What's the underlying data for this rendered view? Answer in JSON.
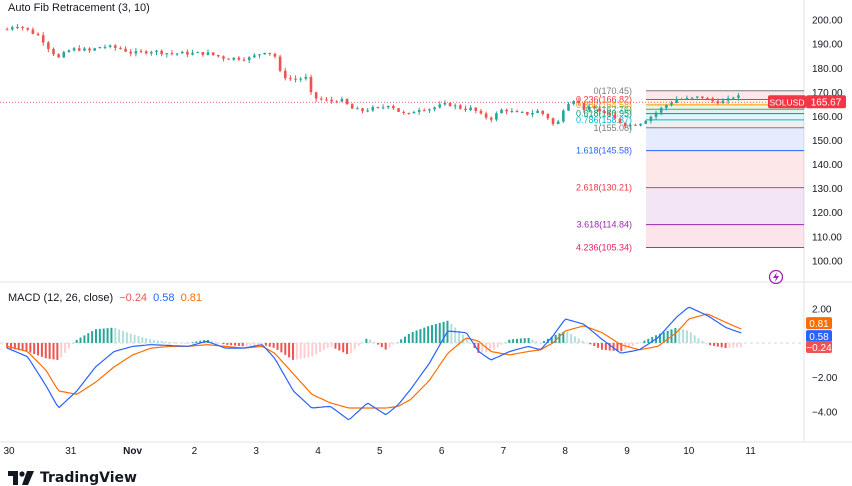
{
  "colors": {
    "up": "#26a69a",
    "down": "#ef5350",
    "macd_line": "#2962ff",
    "signal_line": "#ff6d00",
    "price_tag": "#f23645",
    "fib": {
      "0": "#787b86",
      "0.236": "#f23645",
      "0.382": "#ff9800",
      "0.5": "#4caf50",
      "0.618": "#089981",
      "0.786": "#00bcd4",
      "1": "#787b86",
      "1.618": "#2962ff",
      "2.618": "#f23645",
      "3.618": "#9c27b0",
      "4.236": "#e91e63"
    }
  },
  "header": {
    "indicator_title": "Auto Fib Retracement (3, 10)"
  },
  "macd_header": {
    "name": "MACD (12, 26, close)",
    "hist_value": "−0.24",
    "macd_value": "0.58",
    "signal_value": "0.81"
  },
  "price_tag": {
    "symbol": "SOLUSD",
    "price": "165.67"
  },
  "macd_tags": {
    "signal": "0.81",
    "macd": "0.58",
    "hist": "−0.24"
  },
  "brand": {
    "name": "TradingView"
  },
  "chart_data": [
    {
      "type": "candlestick",
      "x_ticks": [
        "30",
        "31",
        "Nov",
        "2",
        "3",
        "4",
        "5",
        "6",
        "7",
        "8",
        "9",
        "10",
        "11"
      ],
      "y_ticks": [
        "200.00",
        "190.00",
        "180.00",
        "170.00",
        "160.00",
        "150.00",
        "140.00",
        "130.00",
        "120.00",
        "110.00",
        "100.00"
      ],
      "ylim": [
        96,
        204
      ],
      "last_price": 165.67,
      "close_path": [
        [
          29.97,
          196
        ],
        [
          30.1,
          198
        ],
        [
          30.2,
          197
        ],
        [
          30.35,
          195
        ],
        [
          30.5,
          193
        ],
        [
          30.65,
          188
        ],
        [
          30.8,
          184
        ],
        [
          30.95,
          187
        ],
        [
          31.1,
          188
        ],
        [
          31.3,
          187
        ],
        [
          31.5,
          189
        ],
        [
          31.8,
          188
        ],
        [
          32.0,
          186
        ],
        [
          32.3,
          187
        ],
        [
          32.6,
          186
        ],
        [
          32.9,
          186
        ],
        [
          33.2,
          186
        ],
        [
          33.5,
          184
        ],
        [
          33.9,
          184
        ],
        [
          34.15,
          187
        ],
        [
          34.3,
          185
        ],
        [
          34.4,
          177
        ],
        [
          34.6,
          175
        ],
        [
          34.8,
          176
        ],
        [
          34.9,
          168
        ],
        [
          35.0,
          167
        ],
        [
          35.2,
          166
        ],
        [
          35.35,
          167
        ],
        [
          35.55,
          163
        ],
        [
          35.7,
          162
        ],
        [
          35.85,
          163
        ],
        [
          36.0,
          163
        ],
        [
          36.15,
          165
        ],
        [
          36.3,
          162
        ],
        [
          36.45,
          160
        ],
        [
          36.6,
          163
        ],
        [
          36.8,
          163
        ],
        [
          36.95,
          164
        ],
        [
          37.1,
          165
        ],
        [
          37.35,
          163
        ],
        [
          37.5,
          163
        ],
        [
          37.65,
          160
        ],
        [
          37.8,
          159
        ],
        [
          38.0,
          163
        ],
        [
          38.2,
          161
        ],
        [
          38.4,
          161
        ],
        [
          38.55,
          162
        ],
        [
          38.7,
          160
        ],
        [
          38.85,
          155
        ],
        [
          39.0,
          165
        ],
        [
          39.15,
          167
        ],
        [
          39.3,
          163
        ],
        [
          39.5,
          163
        ],
        [
          39.7,
          160
        ],
        [
          39.85,
          158
        ],
        [
          40.0,
          156
        ],
        [
          40.2,
          157
        ],
        [
          40.4,
          160
        ],
        [
          40.6,
          164
        ],
        [
          40.8,
          167
        ],
        [
          41.0,
          167
        ],
        [
          41.2,
          168
        ],
        [
          41.4,
          166
        ],
        [
          41.6,
          166
        ],
        [
          41.78,
          169
        ],
        [
          41.85,
          165.67
        ]
      ],
      "fib_levels": [
        {
          "ratio": "0",
          "label": "0(170.45)",
          "price": 170.45
        },
        {
          "ratio": "0.236",
          "label": "0.236(166.82)",
          "price": 166.82
        },
        {
          "ratio": "0.382",
          "label": "0.382(164.58)",
          "price": 164.58
        },
        {
          "ratio": "0.5",
          "label": "0.5(162.76)",
          "price": 162.76
        },
        {
          "ratio": "0.618",
          "label": "0.618(160.95)",
          "price": 160.95
        },
        {
          "ratio": "0.786",
          "label": "0.786(158.37)",
          "price": 158.37
        },
        {
          "ratio": "1",
          "label": "1(155.08)",
          "price": 155.08
        },
        {
          "ratio": "1.618",
          "label": "1.618(145.58)",
          "price": 145.58
        },
        {
          "ratio": "2.618",
          "label": "2.618(130.21)",
          "price": 130.21
        },
        {
          "ratio": "3.618",
          "label": "3.618(114.84)",
          "price": 114.84
        },
        {
          "ratio": "4.236",
          "label": "4.236(105.34)",
          "price": 105.34
        }
      ]
    },
    {
      "type": "line",
      "name": "MACD (12, 26, close)",
      "y_ticks": [
        "2.00",
        "0.00",
        "−2.00",
        "−4.00"
      ],
      "ylim": [
        -5.2,
        2.8
      ],
      "macd": [
        [
          29.97,
          -0.3
        ],
        [
          30.3,
          -0.8
        ],
        [
          30.6,
          -2.5
        ],
        [
          30.8,
          -3.8
        ],
        [
          31.1,
          -2.8
        ],
        [
          31.4,
          -1.4
        ],
        [
          31.7,
          -0.5
        ],
        [
          32.0,
          -0.2
        ],
        [
          32.3,
          -0.1
        ],
        [
          32.6,
          -0.15
        ],
        [
          32.9,
          -0.2
        ],
        [
          33.2,
          0.1
        ],
        [
          33.5,
          -0.3
        ],
        [
          33.8,
          -0.3
        ],
        [
          34.1,
          -0.1
        ],
        [
          34.3,
          -0.9
        ],
        [
          34.6,
          -2.8
        ],
        [
          34.9,
          -3.8
        ],
        [
          35.2,
          -3.7
        ],
        [
          35.5,
          -4.5
        ],
        [
          35.8,
          -3.5
        ],
        [
          36.1,
          -4.2
        ],
        [
          36.3,
          -3.6
        ],
        [
          36.5,
          -2.7
        ],
        [
          36.8,
          -1.2
        ],
        [
          37.1,
          0.7
        ],
        [
          37.4,
          0.6
        ],
        [
          37.6,
          -0.5
        ],
        [
          37.8,
          -1.0
        ],
        [
          38.1,
          -0.5
        ],
        [
          38.4,
          -0.2
        ],
        [
          38.6,
          -0.4
        ],
        [
          38.8,
          0.4
        ],
        [
          39.0,
          1.4
        ],
        [
          39.3,
          1.1
        ],
        [
          39.6,
          0.2
        ],
        [
          39.9,
          -0.6
        ],
        [
          40.2,
          -0.4
        ],
        [
          40.5,
          0.3
        ],
        [
          40.8,
          1.5
        ],
        [
          41.0,
          2.1
        ],
        [
          41.3,
          1.6
        ],
        [
          41.6,
          0.9
        ],
        [
          41.85,
          0.58
        ]
      ],
      "signal": [
        [
          29.97,
          -0.2
        ],
        [
          30.3,
          -0.5
        ],
        [
          30.6,
          -1.6
        ],
        [
          30.8,
          -2.8
        ],
        [
          31.1,
          -3.0
        ],
        [
          31.4,
          -2.3
        ],
        [
          31.7,
          -1.4
        ],
        [
          32.0,
          -0.7
        ],
        [
          32.3,
          -0.3
        ],
        [
          32.6,
          -0.2
        ],
        [
          32.9,
          -0.2
        ],
        [
          33.2,
          -0.1
        ],
        [
          33.5,
          -0.2
        ],
        [
          33.8,
          -0.3
        ],
        [
          34.1,
          -0.2
        ],
        [
          34.3,
          -0.6
        ],
        [
          34.6,
          -1.8
        ],
        [
          34.9,
          -3.0
        ],
        [
          35.2,
          -3.5
        ],
        [
          35.5,
          -3.8
        ],
        [
          35.8,
          -3.8
        ],
        [
          36.1,
          -3.8
        ],
        [
          36.3,
          -3.7
        ],
        [
          36.5,
          -3.3
        ],
        [
          36.8,
          -2.2
        ],
        [
          37.1,
          -0.6
        ],
        [
          37.4,
          0.3
        ],
        [
          37.6,
          0.1
        ],
        [
          37.8,
          -0.5
        ],
        [
          38.1,
          -0.7
        ],
        [
          38.4,
          -0.5
        ],
        [
          38.6,
          -0.4
        ],
        [
          38.8,
          0.0
        ],
        [
          39.0,
          0.7
        ],
        [
          39.3,
          1.0
        ],
        [
          39.6,
          0.6
        ],
        [
          39.9,
          -0.1
        ],
        [
          40.2,
          -0.4
        ],
        [
          40.5,
          -0.2
        ],
        [
          40.8,
          0.6
        ],
        [
          41.0,
          1.4
        ],
        [
          41.3,
          1.7
        ],
        [
          41.6,
          1.2
        ],
        [
          41.85,
          0.81
        ]
      ],
      "histogram": [
        [
          29.97,
          -0.3
        ],
        [
          30.3,
          -0.5
        ],
        [
          30.6,
          -0.9
        ],
        [
          30.8,
          -1.0
        ],
        [
          31.1,
          0.2
        ],
        [
          31.4,
          0.8
        ],
        [
          31.7,
          0.9
        ],
        [
          32.0,
          0.5
        ],
        [
          32.3,
          0.2
        ],
        [
          32.6,
          0.05
        ],
        [
          32.9,
          0.0
        ],
        [
          33.2,
          0.2
        ],
        [
          33.5,
          -0.1
        ],
        [
          33.8,
          -0.2
        ],
        [
          34.1,
          -0.1
        ],
        [
          34.3,
          -0.3
        ],
        [
          34.6,
          -1.0
        ],
        [
          34.9,
          -0.8
        ],
        [
          35.2,
          -0.2
        ],
        [
          35.5,
          -0.7
        ],
        [
          35.8,
          0.3
        ],
        [
          36.1,
          -0.4
        ],
        [
          36.3,
          0.1
        ],
        [
          36.5,
          0.6
        ],
        [
          36.8,
          1.0
        ],
        [
          37.1,
          1.3
        ],
        [
          37.4,
          0.3
        ],
        [
          37.6,
          -0.6
        ],
        [
          37.8,
          -0.5
        ],
        [
          38.1,
          0.2
        ],
        [
          38.4,
          0.3
        ],
        [
          38.6,
          0.0
        ],
        [
          38.8,
          0.4
        ],
        [
          39.0,
          0.7
        ],
        [
          39.3,
          0.1
        ],
        [
          39.6,
          -0.4
        ],
        [
          39.9,
          -0.5
        ],
        [
          40.2,
          0.0
        ],
        [
          40.5,
          0.5
        ],
        [
          40.8,
          0.9
        ],
        [
          41.0,
          0.7
        ],
        [
          41.3,
          -0.1
        ],
        [
          41.6,
          -0.3
        ],
        [
          41.85,
          -0.24
        ]
      ]
    }
  ]
}
